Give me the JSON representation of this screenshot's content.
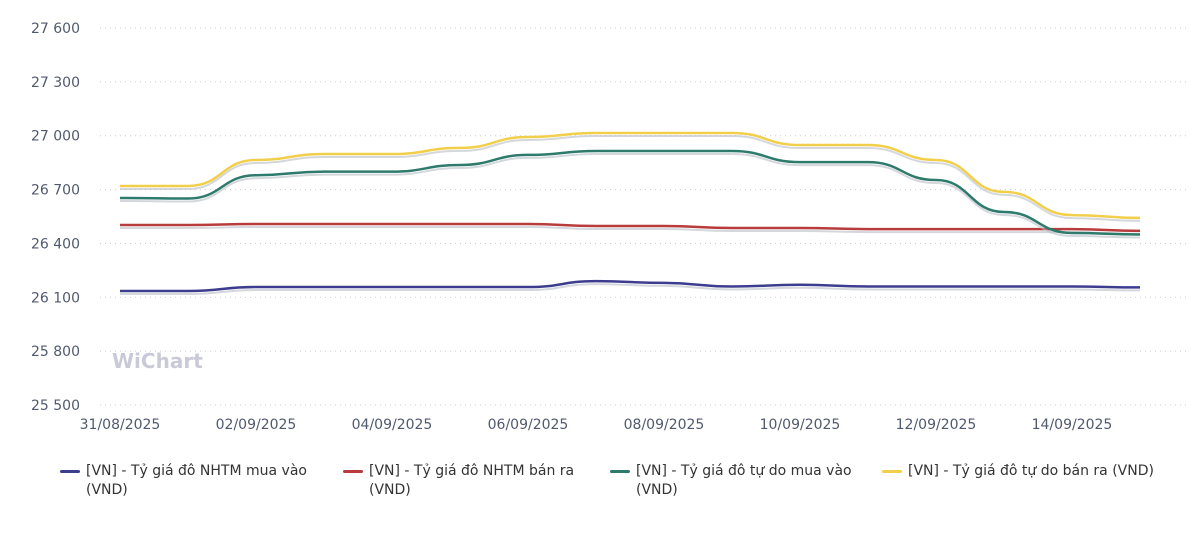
{
  "chart_data": {
    "type": "line",
    "watermark": "WiChart",
    "categories": [
      "31/08/2025",
      null,
      "02/09/2025",
      null,
      "04/09/2025",
      null,
      "06/09/2025",
      null,
      "08/09/2025",
      null,
      "10/09/2025",
      null,
      "12/09/2025",
      null,
      "14/09/2025",
      null
    ],
    "series": [
      {
        "name": "[VN] - Tỷ giá đô NHTM mua vào (VND)",
        "color": "#3d3d8f",
        "values": [
          26135,
          26135,
          26157,
          26157,
          26157,
          26157,
          26157,
          26190,
          26180,
          26160,
          26170,
          26160,
          26160,
          26160,
          26160,
          26155
        ]
      },
      {
        "name": "[VN] - Tỷ giá đô NHTM bán ra (VND)",
        "color": "#b83c3c",
        "values": [
          26503,
          26503,
          26508,
          26508,
          26508,
          26508,
          26508,
          26497,
          26497,
          26486,
          26486,
          26480,
          26480,
          26480,
          26480,
          26470
        ]
      },
      {
        "name": "[VN] - Tỷ giá đô tự do mua vào (VND)",
        "color": "#2e7a6c",
        "values": [
          26653,
          26650,
          26780,
          26800,
          26800,
          26837,
          26893,
          26915,
          26915,
          26915,
          26853,
          26853,
          26753,
          26575,
          26458,
          26450
        ]
      },
      {
        "name": "[VN] - Tỷ giá đô tự do bán ra (VND)",
        "color": "#f2cf4a",
        "values": [
          26720,
          26720,
          26865,
          26898,
          26898,
          26932,
          26993,
          27015,
          27015,
          27015,
          26948,
          26948,
          26865,
          26687,
          26558,
          26542
        ]
      }
    ],
    "ylim": [
      25500,
      27600
    ],
    "yticks": [
      {
        "value": 25500,
        "label": "25 500"
      },
      {
        "value": 25800,
        "label": "25 800"
      },
      {
        "value": 26100,
        "label": "26 100"
      },
      {
        "value": 26400,
        "label": "26 400"
      },
      {
        "value": 26700,
        "label": "26 700"
      },
      {
        "value": 27000,
        "label": "27 000"
      },
      {
        "value": 27300,
        "label": "27 300"
      },
      {
        "value": 27600,
        "label": "27 600"
      }
    ],
    "grid": true
  }
}
